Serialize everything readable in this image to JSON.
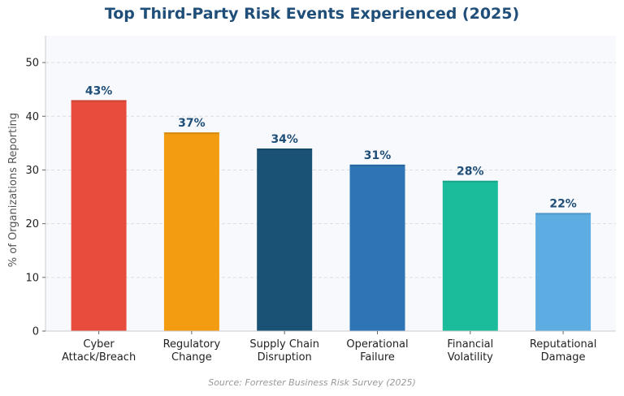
{
  "chart_data": {
    "type": "bar",
    "title": "Top Third-Party Risk Events Experienced (2025)",
    "xlabel": "",
    "ylabel": "% of Organizations Reporting",
    "categories": [
      [
        "Cyber",
        "Attack/Breach"
      ],
      [
        "Regulatory",
        "Change"
      ],
      [
        "Supply Chain",
        "Disruption"
      ],
      [
        "Operational",
        "Failure"
      ],
      [
        "Financial",
        "Volatility"
      ],
      [
        "Reputational",
        "Damage"
      ]
    ],
    "values": [
      43,
      37,
      34,
      31,
      28,
      22
    ],
    "value_labels": [
      "43%",
      "37%",
      "34%",
      "31%",
      "28%",
      "22%"
    ],
    "colors": [
      "#e74c3c",
      "#f39c12",
      "#1a5276",
      "#2e75b6",
      "#1abc9c",
      "#5dade2"
    ],
    "ylim": [
      0,
      55
    ],
    "yticks": [
      0,
      10,
      20,
      30,
      40,
      50
    ],
    "grid": true,
    "grid_color": "#dddddd",
    "plot_background": "#f8f9fc",
    "source": "Source: Forrester Business Risk Survey (2025)"
  }
}
